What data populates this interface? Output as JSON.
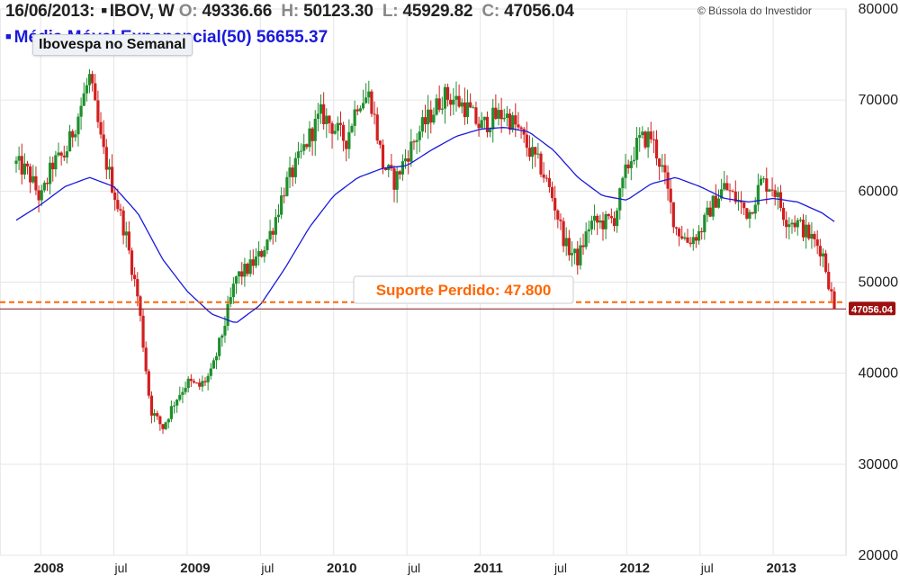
{
  "header": {
    "date": "16/06/2013:",
    "symbol": "IBOV, W",
    "open_label": "O:",
    "open": "49336.66",
    "high_label": "H:",
    "high": "50123.30",
    "low_label": "L:",
    "low": "45929.82",
    "close_label": "C:",
    "close": "47056.04"
  },
  "ema_legend": {
    "label": "Média Móvel Exponencial(50)",
    "value": "56655.37"
  },
  "copyright": "© Bússola do Investidor",
  "colors": {
    "up": "#1f8f2d",
    "down": "#d11f1f",
    "ema": "#1a1adc",
    "support": "#ff6600",
    "price_line": "#7a1a1a",
    "price_tag": "#9e1010"
  },
  "chart_data": {
    "type": "candlestick",
    "title": "Ibovespa no Semanal",
    "frequency": "weekly",
    "y_axis": {
      "position": "right",
      "ylim": [
        20000,
        80000
      ],
      "ticks": [
        "20000",
        "30000",
        "40000",
        "50000",
        "60000",
        "70000",
        "80000"
      ]
    },
    "x_axis": {
      "range": [
        "2007-11",
        "2013-06"
      ],
      "tick_labels": [
        {
          "date": "2008-01",
          "label": "2008",
          "bold": true
        },
        {
          "date": "2008-07",
          "label": "jul",
          "bold": false
        },
        {
          "date": "2009-01",
          "label": "2009",
          "bold": true
        },
        {
          "date": "2009-07",
          "label": "jul",
          "bold": false
        },
        {
          "date": "2010-01",
          "label": "2010",
          "bold": true
        },
        {
          "date": "2010-07",
          "label": "jul",
          "bold": false
        },
        {
          "date": "2011-01",
          "label": "2011",
          "bold": true
        },
        {
          "date": "2011-07",
          "label": "jul",
          "bold": false
        },
        {
          "date": "2012-01",
          "label": "2012",
          "bold": true
        },
        {
          "date": "2012-07",
          "label": "jul",
          "bold": false
        },
        {
          "date": "2013-01",
          "label": "2013",
          "bold": true
        }
      ]
    },
    "grid": {
      "vertical": true,
      "horizontal": true
    },
    "price_anchors": [
      [
        "2007-11",
        63000
      ],
      [
        "2007-12",
        62000
      ],
      [
        "2008-01",
        59000
      ],
      [
        "2008-02",
        63000
      ],
      [
        "2008-03",
        64000
      ],
      [
        "2008-04",
        68000
      ],
      [
        "2008-05",
        72500
      ],
      [
        "2008-06",
        65000
      ],
      [
        "2008-07",
        60000
      ],
      [
        "2008-08",
        55000
      ],
      [
        "2008-09",
        48000
      ],
      [
        "2008-10",
        36000
      ],
      [
        "2008-11",
        34000
      ],
      [
        "2008-12",
        37000
      ],
      [
        "2009-01",
        39000
      ],
      [
        "2009-02",
        38500
      ],
      [
        "2009-03",
        40000
      ],
      [
        "2009-04",
        45000
      ],
      [
        "2009-05",
        50500
      ],
      [
        "2009-06",
        51500
      ],
      [
        "2009-07",
        53000
      ],
      [
        "2009-08",
        56000
      ],
      [
        "2009-09",
        60500
      ],
      [
        "2009-10",
        63000
      ],
      [
        "2009-11",
        66000
      ],
      [
        "2009-12",
        68500
      ],
      [
        "2010-01",
        67000
      ],
      [
        "2010-02",
        65500
      ],
      [
        "2010-03",
        70000
      ],
      [
        "2010-04",
        70500
      ],
      [
        "2010-05",
        63000
      ],
      [
        "2010-06",
        61000
      ],
      [
        "2010-07",
        64000
      ],
      [
        "2010-08",
        66500
      ],
      [
        "2010-09",
        68500
      ],
      [
        "2010-10",
        70500
      ],
      [
        "2010-11",
        70000
      ],
      [
        "2010-12",
        69000
      ],
      [
        "2011-01",
        67000
      ],
      [
        "2011-02",
        68000
      ],
      [
        "2011-03",
        68500
      ],
      [
        "2011-04",
        67000
      ],
      [
        "2011-05",
        64500
      ],
      [
        "2011-06",
        62500
      ],
      [
        "2011-07",
        59000
      ],
      [
        "2011-08",
        54000
      ],
      [
        "2011-09",
        52500
      ],
      [
        "2011-10",
        56500
      ],
      [
        "2011-11",
        56500
      ],
      [
        "2011-12",
        57000
      ],
      [
        "2012-01",
        62500
      ],
      [
        "2012-02",
        65500
      ],
      [
        "2012-03",
        66000
      ],
      [
        "2012-04",
        62000
      ],
      [
        "2012-05",
        56000
      ],
      [
        "2012-06",
        54500
      ],
      [
        "2012-07",
        55500
      ],
      [
        "2012-08",
        58500
      ],
      [
        "2012-09",
        60500
      ],
      [
        "2012-10",
        59000
      ],
      [
        "2012-11",
        57500
      ],
      [
        "2012-12",
        61000
      ],
      [
        "2013-01",
        60500
      ],
      [
        "2013-02",
        57000
      ],
      [
        "2013-03",
        56500
      ],
      [
        "2013-04",
        55000
      ],
      [
        "2013-05",
        53500
      ],
      [
        "2013-06",
        47056
      ]
    ],
    "ema_anchors": [
      [
        "2007-11",
        56800
      ],
      [
        "2008-01",
        58500
      ],
      [
        "2008-03",
        60500
      ],
      [
        "2008-05",
        61500
      ],
      [
        "2008-07",
        60500
      ],
      [
        "2008-09",
        57500
      ],
      [
        "2008-11",
        52500
      ],
      [
        "2009-01",
        49000
      ],
      [
        "2009-03",
        46500
      ],
      [
        "2009-05",
        45500
      ],
      [
        "2009-07",
        47500
      ],
      [
        "2009-09",
        51500
      ],
      [
        "2009-11",
        56000
      ],
      [
        "2010-01",
        59500
      ],
      [
        "2010-03",
        61500
      ],
      [
        "2010-05",
        62500
      ],
      [
        "2010-07",
        62800
      ],
      [
        "2010-09",
        64500
      ],
      [
        "2010-11",
        66000
      ],
      [
        "2011-01",
        66800
      ],
      [
        "2011-03",
        67000
      ],
      [
        "2011-05",
        66500
      ],
      [
        "2011-07",
        64500
      ],
      [
        "2011-09",
        61500
      ],
      [
        "2011-11",
        59500
      ],
      [
        "2012-01",
        59000
      ],
      [
        "2012-03",
        60800
      ],
      [
        "2012-05",
        61500
      ],
      [
        "2012-07",
        60500
      ],
      [
        "2012-09",
        59200
      ],
      [
        "2012-11",
        58800
      ],
      [
        "2013-01",
        59200
      ],
      [
        "2013-03",
        58800
      ],
      [
        "2013-05",
        57600
      ],
      [
        "2013-06",
        56655
      ]
    ],
    "support_line": {
      "value": 47800,
      "label": "Suporte Perdido: 47.800",
      "style": "dashed"
    },
    "last_price": {
      "value": 47056.04,
      "label": "47056.04"
    }
  }
}
